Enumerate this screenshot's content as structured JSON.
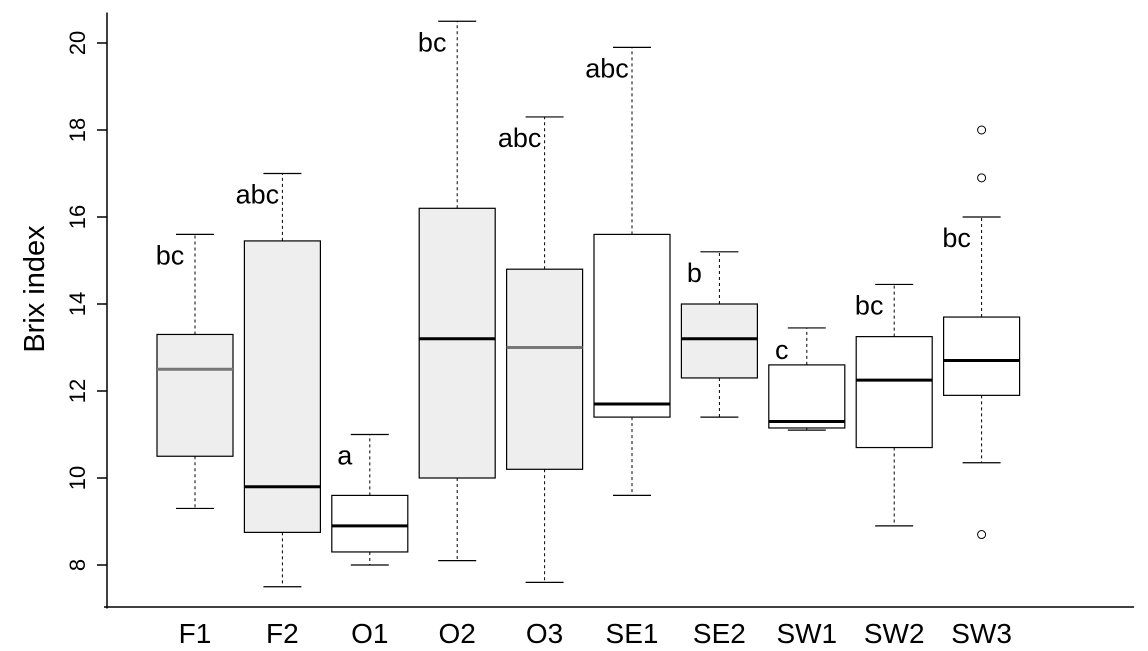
{
  "chart_data": {
    "type": "box",
    "ylabel": "Brix index",
    "ylim": [
      7,
      20.7
    ],
    "yticks": [
      8,
      10,
      12,
      14,
      16,
      18,
      20
    ],
    "categories": [
      "F1",
      "F2",
      "O1",
      "O2",
      "O3",
      "SE1",
      "SE2",
      "SW1",
      "SW2",
      "SW3"
    ],
    "boxes": [
      {
        "category": "F1",
        "whisker_low": 9.3,
        "q1": 10.5,
        "median": 12.5,
        "q3": 13.3,
        "whisker_high": 15.6,
        "letter": "bc",
        "fill": "#eeeeee",
        "median_color": "#777777",
        "outliers": []
      },
      {
        "category": "F2",
        "whisker_low": 7.5,
        "q1": 8.75,
        "median": 9.8,
        "q3": 15.45,
        "whisker_high": 17.0,
        "letter": "abc",
        "fill": "#eeeeee",
        "median_color": "#000000",
        "outliers": []
      },
      {
        "category": "O1",
        "whisker_low": 8.0,
        "q1": 8.3,
        "median": 8.9,
        "q3": 9.6,
        "whisker_high": 11.0,
        "letter": "a",
        "fill": "#ffffff",
        "median_color": "#000000",
        "outliers": []
      },
      {
        "category": "O2",
        "whisker_low": 8.1,
        "q1": 10.0,
        "median": 13.2,
        "q3": 16.2,
        "whisker_high": 20.5,
        "letter": "bc",
        "fill": "#eeeeee",
        "median_color": "#000000",
        "outliers": []
      },
      {
        "category": "O3",
        "whisker_low": 7.6,
        "q1": 10.2,
        "median": 13.0,
        "q3": 14.8,
        "whisker_high": 18.3,
        "letter": "abc",
        "fill": "#eeeeee",
        "median_color": "#777777",
        "outliers": []
      },
      {
        "category": "SE1",
        "whisker_low": 9.6,
        "q1": 11.4,
        "median": 11.7,
        "q3": 15.6,
        "whisker_high": 19.9,
        "letter": "abc",
        "fill": "#ffffff",
        "median_color": "#000000",
        "outliers": []
      },
      {
        "category": "SE2",
        "whisker_low": 11.4,
        "q1": 12.3,
        "median": 13.2,
        "q3": 14.0,
        "whisker_high": 15.2,
        "letter": "b",
        "fill": "#eeeeee",
        "median_color": "#000000",
        "outliers": []
      },
      {
        "category": "SW1",
        "whisker_low": 11.1,
        "q1": 11.15,
        "median": 11.3,
        "q3": 12.6,
        "whisker_high": 13.45,
        "letter": "c",
        "fill": "#ffffff",
        "median_color": "#000000",
        "outliers": []
      },
      {
        "category": "SW2",
        "whisker_low": 8.9,
        "q1": 10.7,
        "median": 12.25,
        "q3": 13.25,
        "whisker_high": 14.45,
        "letter": "bc",
        "fill": "#ffffff",
        "median_color": "#000000",
        "outliers": []
      },
      {
        "category": "SW3",
        "whisker_low": 10.35,
        "q1": 11.9,
        "median": 12.7,
        "q3": 13.7,
        "whisker_high": 16.0,
        "letter": "bc",
        "fill": "#ffffff",
        "median_color": "#000000",
        "outliers": [
          18.0,
          16.9,
          8.7
        ]
      }
    ],
    "grid": false,
    "legend": "none"
  }
}
